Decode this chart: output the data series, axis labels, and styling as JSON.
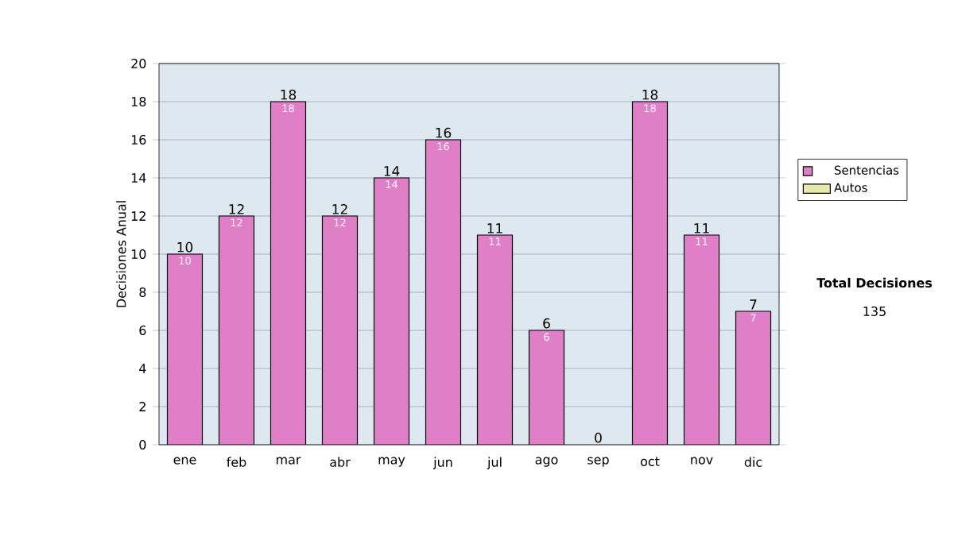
{
  "chart_data": {
    "type": "bar",
    "stacked": true,
    "ylabel": "Decisiones Anual",
    "categories": [
      "ene",
      "feb",
      "mar",
      "abr",
      "may",
      "jun",
      "jul",
      "ago",
      "sep",
      "oct",
      "nov",
      "dic"
    ],
    "series": [
      {
        "name": "Sentencias",
        "color": "#e07fc8",
        "values": [
          10,
          12,
          18,
          12,
          14,
          16,
          11,
          6,
          0,
          18,
          11,
          7
        ],
        "value_labels": [
          "10",
          "12",
          "18",
          "12",
          "14",
          "16",
          "11",
          "6",
          null,
          "18",
          "11",
          "7"
        ]
      },
      {
        "name": "Autos",
        "color": "#e8e8a8",
        "values": [
          null,
          null,
          null,
          null,
          null,
          null,
          null,
          null,
          null,
          null,
          null,
          null
        ]
      }
    ],
    "totals": [
      "10",
      "12",
      "18",
      "12",
      "14",
      "16",
      "11",
      "6",
      "0",
      "18",
      "11",
      "7"
    ],
    "ylim": [
      0,
      20
    ],
    "yticks": [
      0,
      2,
      4,
      6,
      8,
      10,
      12,
      14,
      16,
      18,
      20
    ],
    "grid": "y",
    "legend": "right",
    "annotations": [
      "Total Decisiones",
      "135"
    ]
  }
}
